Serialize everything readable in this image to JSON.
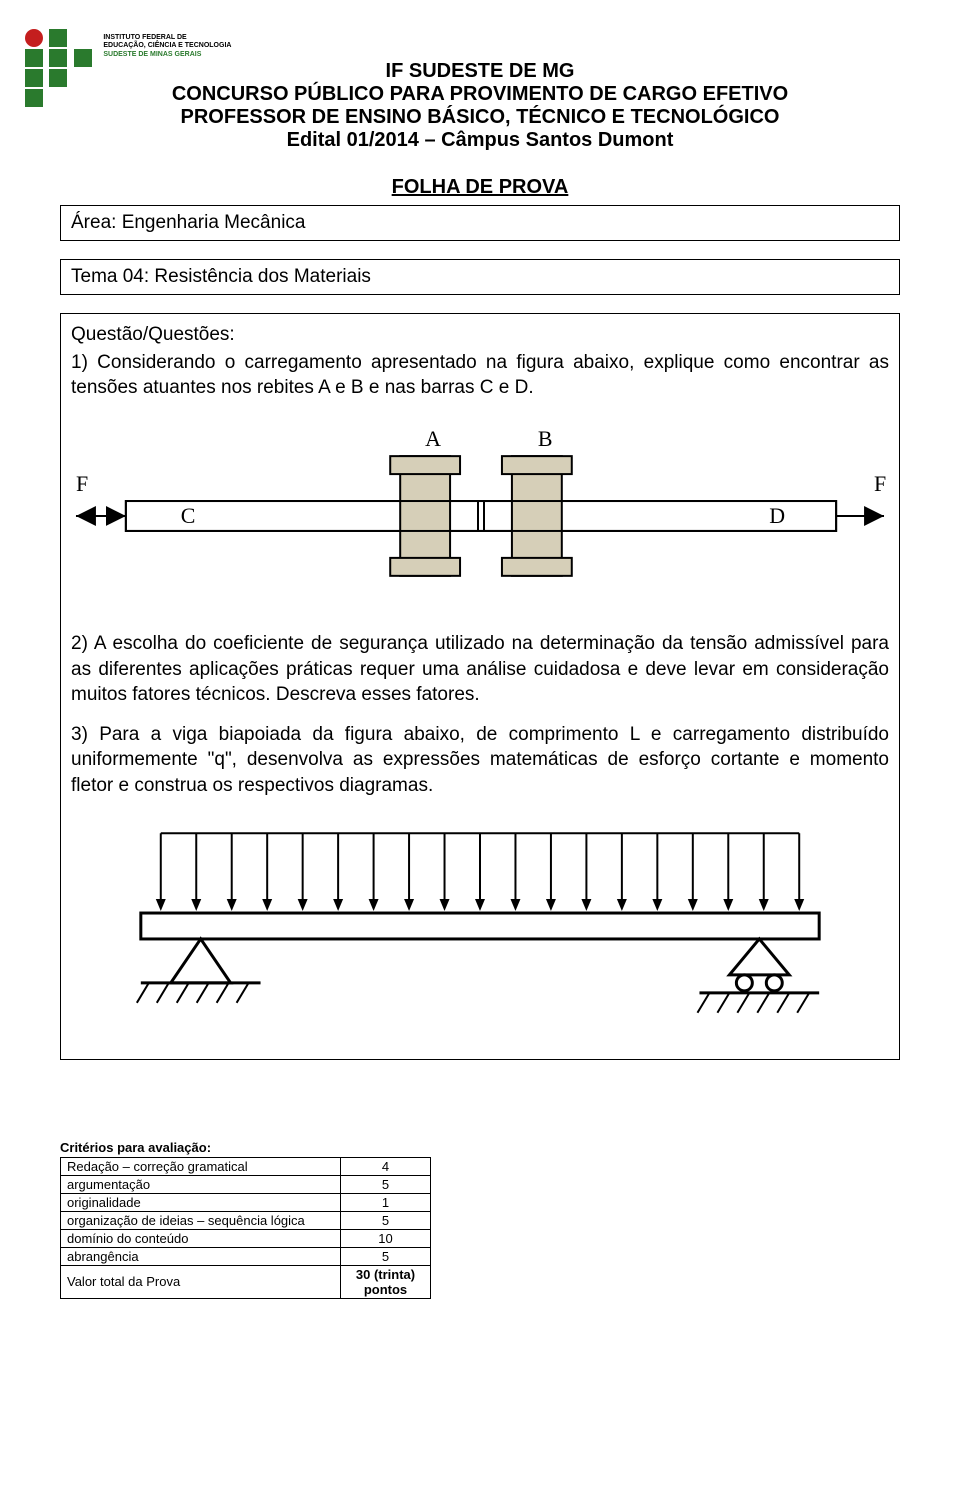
{
  "logo": {
    "colors": [
      "#c41e1e",
      "#2a7a2d",
      "#f0a000"
    ],
    "line1": "INSTITUTO FEDERAL DE",
    "line2": "EDUCAÇÃO, CIÊNCIA E TECNOLOGIA",
    "line3": "SUDESTE DE MINAS GERAIS"
  },
  "header": {
    "l1": "IF SUDESTE DE MG",
    "l2": "CONCURSO PÚBLICO PARA PROVIMENTO DE CARGO EFETIVO",
    "l3": "PROFESSOR DE ENSINO BÁSICO, TÉCNICO E TECNOLÓGICO",
    "l4": "Edital 01/2014 – Câmpus Santos Dumont",
    "sub": "FOLHA DE PROVA"
  },
  "area_box": "Área: Engenharia Mecânica",
  "tema_box": "Tema 04: Resistência dos Materiais",
  "questions": {
    "head": "Questão/Questões:",
    "q1": "1) Considerando o carregamento apresentado na figura abaixo, explique como encontrar as tensões atuantes nos rebites A e B e nas barras C e D.",
    "q2": "2) A escolha do coeficiente de segurança utilizado na determinação da tensão admissível para as diferentes aplicações práticas requer uma análise cuidadosa e deve levar em consideração muitos fatores técnicos. Descreva esses fatores.",
    "q3": "3) Para a viga biapoiada da figura abaixo, de comprimento L e carregamento distribuído uniformemente \"q\", desenvolva as expressões matemáticas de esforço cortante e momento fletor e construa os respectivos diagramas."
  },
  "fig1": {
    "labels": {
      "A": "A",
      "B": "B",
      "C": "C",
      "D": "D",
      "F": "F"
    },
    "colors": {
      "bar_fill": "#ffffff",
      "rivet_fill": "#d6cfb8",
      "stroke": "#000000"
    }
  },
  "fig2": {
    "arrow_count": 19,
    "colors": {
      "stroke": "#000000",
      "fill": "#ffffff"
    }
  },
  "criteria": {
    "title": "Critérios para avaliação:",
    "rows": [
      {
        "label": "Redação – correção gramatical",
        "value": "4"
      },
      {
        "label": "argumentação",
        "value": "5"
      },
      {
        "label": "originalidade",
        "value": "1"
      },
      {
        "label": "organização de ideias – sequência lógica",
        "value": "5"
      },
      {
        "label": "domínio do conteúdo",
        "value": "10"
      },
      {
        "label": "abrangência",
        "value": "5"
      },
      {
        "label": "Valor total da Prova",
        "value": "30 (trinta) pontos"
      }
    ]
  }
}
